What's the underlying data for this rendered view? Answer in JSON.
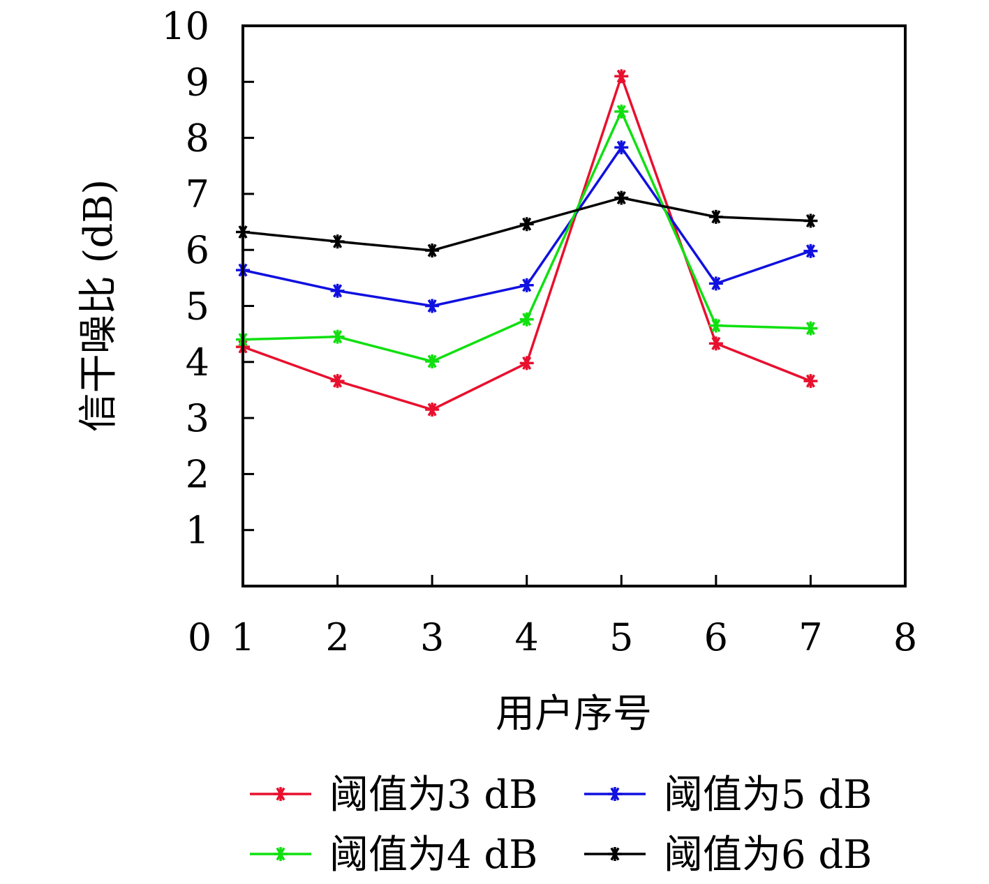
{
  "chart_data": {
    "type": "line",
    "title": "",
    "xlabel": "用户序号",
    "ylabel": "信干噪比 (dB)",
    "x": [
      1,
      2,
      3,
      4,
      5,
      6,
      7
    ],
    "xlim": [
      0,
      8
    ],
    "ylim": [
      0,
      10
    ],
    "xticks": [
      "0",
      "1",
      "2",
      "3",
      "4",
      "5",
      "6",
      "7",
      "8"
    ],
    "yticks": [
      "1",
      "2",
      "3",
      "4",
      "5",
      "6",
      "7",
      "8",
      "9",
      "10"
    ],
    "grid": false,
    "legend_position": "bottom",
    "marker": "asterisk",
    "series": [
      {
        "name": "阈值为3 dB",
        "color": "#e8102e",
        "values": [
          4.27,
          3.66,
          3.15,
          3.98,
          9.1,
          4.33,
          3.66
        ]
      },
      {
        "name": "阈值为5 dB",
        "color": "#1010e0",
        "values": [
          5.64,
          5.27,
          5.0,
          5.37,
          7.83,
          5.4,
          5.98
        ]
      },
      {
        "name": "阈值为4 dB",
        "color": "#10e010",
        "values": [
          4.4,
          4.45,
          4.01,
          4.76,
          8.47,
          4.65,
          4.6
        ]
      },
      {
        "name": "阈值为6 dB",
        "color": "#000000",
        "values": [
          6.32,
          6.15,
          5.99,
          6.46,
          6.93,
          6.59,
          6.52
        ]
      }
    ]
  }
}
